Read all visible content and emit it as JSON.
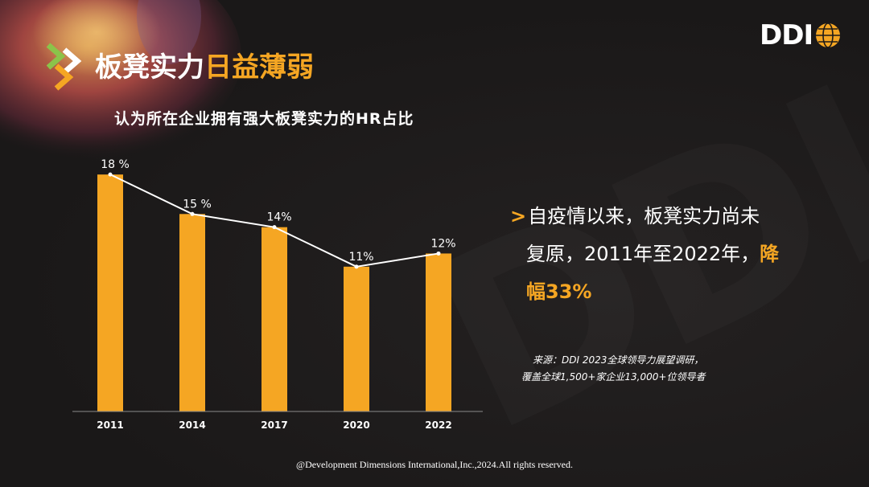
{
  "slide": {
    "title_white": "板凳实力",
    "title_orange": "日益薄弱",
    "logo_text": "DDI",
    "callout": {
      "part1": "自疫情以来，板凳实力尚未",
      "part2": "复原，2011年至2022年，",
      "highlight1": "降",
      "highlight2": "幅33%"
    },
    "source_line1": "来源：DDI 2023全球领导力展望调研，",
    "source_line2": "覆盖全球1,500+家企业13,000+位领导者",
    "footer": "@Development Dimensions International,Inc.,2024.All rights reserved.",
    "colors": {
      "accent": "#f5a623",
      "bar": "#f5a623",
      "background": "#1c1a1a",
      "text": "#ffffff"
    }
  },
  "chart_data": {
    "type": "bar",
    "title": "认为所在企业拥有强大板凳实力的HR占比",
    "categories": [
      "2011",
      "2014",
      "2017",
      "2020",
      "2022"
    ],
    "values": [
      18,
      15,
      14,
      11,
      12
    ],
    "data_labels": [
      "18 %",
      "15 %",
      "14%",
      "11%",
      "12%"
    ],
    "unit": "%",
    "overlay": "line",
    "ylim": [
      0,
      20
    ],
    "grid": false,
    "legend": "none"
  }
}
